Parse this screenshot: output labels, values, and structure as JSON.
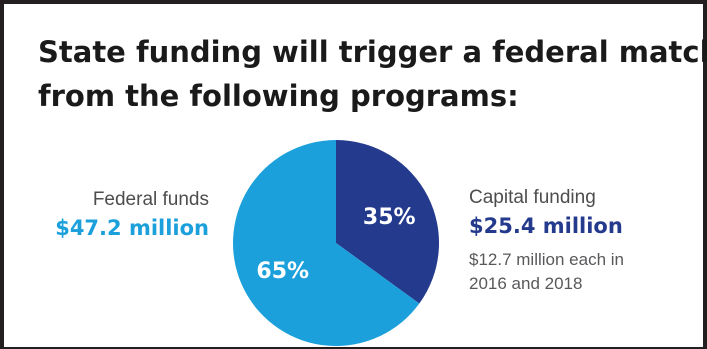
{
  "heading": {
    "line1": "State funding will trigger a federal match",
    "line2": "from the following programs:"
  },
  "colors": {
    "federal": "#1ba0dc",
    "capital": "#243a8c",
    "border": "#231f20"
  },
  "chart_data": {
    "type": "pie",
    "title": "",
    "slices": [
      {
        "name": "Capital funding",
        "value": 35,
        "label": "35%",
        "amount": "$25.4 million",
        "note": [
          "$12.7 million each in",
          "2016 and 2018"
        ],
        "color": "#243a8c"
      },
      {
        "name": "Federal funds",
        "value": 65,
        "label": "65%",
        "amount": "$47.2 million",
        "color": "#1ba0dc"
      }
    ],
    "legend": "none"
  }
}
